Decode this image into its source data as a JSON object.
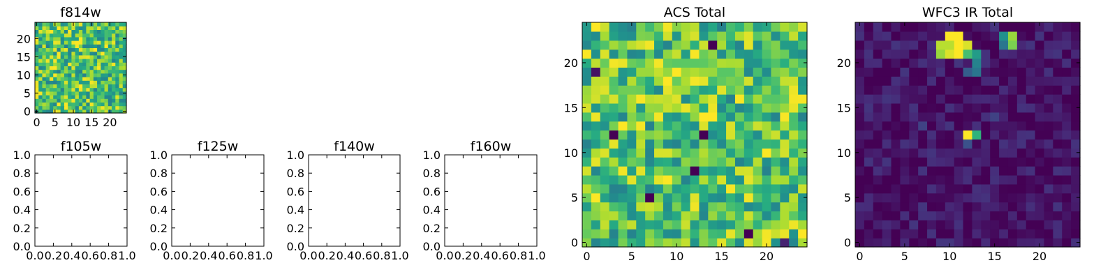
{
  "chart_data": [
    {
      "id": "f814w",
      "type": "heatmap",
      "title": "f814w",
      "colormap": "viridis",
      "grid_size": [
        25,
        25
      ],
      "xlim": [
        -0.5,
        24.5
      ],
      "ylim": [
        -0.5,
        24.5
      ],
      "x_ticks": [
        0,
        5,
        10,
        15,
        20
      ],
      "y_ticks": [
        0,
        5,
        10,
        15,
        20
      ],
      "x_tick_labels": [
        "0",
        "5",
        "10",
        "15",
        "20"
      ],
      "y_tick_labels": [
        "0",
        "5",
        "10",
        "15",
        "20"
      ],
      "value_range": [
        0,
        1
      ],
      "pattern": "noise",
      "base_level": 0.72,
      "noise_level": 0.28,
      "seed": 814,
      "hotspots": []
    },
    {
      "id": "f105w",
      "type": "empty",
      "title": "f105w",
      "xlim": [
        0,
        1
      ],
      "ylim": [
        0,
        1
      ],
      "x_tick_labels": [
        "0.0",
        "0.2",
        "0.4",
        "0.6",
        "0.8",
        "1.0"
      ],
      "y_tick_labels": [
        "0.0",
        "0.2",
        "0.4",
        "0.6",
        "0.8",
        "1.0"
      ]
    },
    {
      "id": "f125w",
      "type": "empty",
      "title": "f125w",
      "xlim": [
        0,
        1
      ],
      "ylim": [
        0,
        1
      ],
      "x_tick_labels": [
        "0.0",
        "0.2",
        "0.4",
        "0.6",
        "0.8",
        "1.0"
      ],
      "y_tick_labels": [
        "0.0",
        "0.2",
        "0.4",
        "0.6",
        "0.8",
        "1.0"
      ]
    },
    {
      "id": "f140w",
      "type": "empty",
      "title": "f140w",
      "xlim": [
        0,
        1
      ],
      "ylim": [
        0,
        1
      ],
      "x_tick_labels": [
        "0.0",
        "0.2",
        "0.4",
        "0.6",
        "0.8",
        "1.0"
      ],
      "y_tick_labels": [
        "0.0",
        "0.2",
        "0.4",
        "0.6",
        "0.8",
        "1.0"
      ]
    },
    {
      "id": "f160w",
      "type": "empty",
      "title": "f160w",
      "xlim": [
        0,
        1
      ],
      "ylim": [
        0,
        1
      ],
      "x_tick_labels": [
        "0.0",
        "0.2",
        "0.4",
        "0.6",
        "0.8",
        "1.0"
      ],
      "y_tick_labels": [
        "0.0",
        "0.2",
        "0.4",
        "0.6",
        "0.8",
        "1.0"
      ]
    },
    {
      "id": "acs_total",
      "type": "heatmap",
      "title": "ACS Total",
      "colormap": "viridis",
      "grid_size": [
        25,
        25
      ],
      "xlim": [
        -0.5,
        24.5
      ],
      "ylim": [
        -0.5,
        24.5
      ],
      "x_ticks": [
        0,
        5,
        10,
        15,
        20
      ],
      "y_ticks": [
        0,
        5,
        10,
        15,
        20
      ],
      "x_tick_labels": [
        "0",
        "5",
        "10",
        "15",
        "20"
      ],
      "y_tick_labels": [
        "0",
        "5",
        "10",
        "15",
        "20"
      ],
      "value_range": [
        0,
        1
      ],
      "pattern": "noise",
      "base_level": 0.72,
      "noise_level": 0.28,
      "seed": 777,
      "hotspots": [
        {
          "x": 4,
          "y": 13,
          "v": 1.0
        },
        {
          "x": 13,
          "y": 14,
          "v": 1.0
        },
        {
          "x": 14,
          "y": 14,
          "v": 1.0
        },
        {
          "x": 13,
          "y": 13,
          "v": 0.95
        },
        {
          "x": 10,
          "y": 19,
          "v": 1.0
        },
        {
          "x": 3,
          "y": 12,
          "v": 0.0
        },
        {
          "x": 13,
          "y": 12,
          "v": 0.0
        },
        {
          "x": 12,
          "y": 8,
          "v": 0.0
        },
        {
          "x": 7,
          "y": 5,
          "v": 0.0
        },
        {
          "x": 18,
          "y": 1,
          "v": 0.0
        },
        {
          "x": 14,
          "y": 22,
          "v": 0.0
        },
        {
          "x": 1,
          "y": 19,
          "v": 0.05
        },
        {
          "x": 22,
          "y": 0,
          "v": 0.1
        }
      ]
    },
    {
      "id": "wfc3_ir_total",
      "type": "heatmap",
      "title": "WFC3 IR Total",
      "colormap": "viridis",
      "grid_size": [
        25,
        25
      ],
      "xlim": [
        -0.5,
        24.5
      ],
      "ylim": [
        -0.5,
        24.5
      ],
      "x_ticks": [
        0,
        5,
        10,
        15,
        20
      ],
      "y_ticks": [
        0,
        5,
        10,
        15,
        20
      ],
      "x_tick_labels": [
        "0",
        "5",
        "10",
        "15",
        "20"
      ],
      "y_tick_labels": [
        "0",
        "5",
        "10",
        "15",
        "20"
      ],
      "value_range": [
        0,
        1
      ],
      "pattern": "noise",
      "base_level": 0.06,
      "noise_level": 0.1,
      "seed": 3160,
      "hotspots": [
        {
          "x": 10,
          "y": 23,
          "v": 1.0
        },
        {
          "x": 11,
          "y": 23,
          "v": 1.0
        },
        {
          "x": 10,
          "y": 22,
          "v": 0.9
        },
        {
          "x": 11,
          "y": 22,
          "v": 1.0
        },
        {
          "x": 12,
          "y": 22,
          "v": 0.95
        },
        {
          "x": 9,
          "y": 22,
          "v": 0.9
        },
        {
          "x": 9,
          "y": 21,
          "v": 0.85
        },
        {
          "x": 10,
          "y": 21,
          "v": 0.95
        },
        {
          "x": 11,
          "y": 21,
          "v": 1.0
        },
        {
          "x": 12,
          "y": 21,
          "v": 0.7
        },
        {
          "x": 13,
          "y": 21,
          "v": 0.55
        },
        {
          "x": 13,
          "y": 20,
          "v": 0.45
        },
        {
          "x": 13,
          "y": 19,
          "v": 0.4
        },
        {
          "x": 12,
          "y": 19,
          "v": 0.3
        },
        {
          "x": 16,
          "y": 23,
          "v": 0.5
        },
        {
          "x": 16,
          "y": 22,
          "v": 0.4
        },
        {
          "x": 17,
          "y": 23,
          "v": 0.85
        },
        {
          "x": 17,
          "y": 22,
          "v": 0.8
        },
        {
          "x": 12,
          "y": 12,
          "v": 1.0
        },
        {
          "x": 13,
          "y": 12,
          "v": 0.65
        },
        {
          "x": 12,
          "y": 11,
          "v": 0.25
        },
        {
          "x": 7,
          "y": 13,
          "v": 0.2
        },
        {
          "x": 15,
          "y": 14,
          "v": 0.2
        },
        {
          "x": 18,
          "y": 15,
          "v": 0.15
        }
      ]
    }
  ]
}
